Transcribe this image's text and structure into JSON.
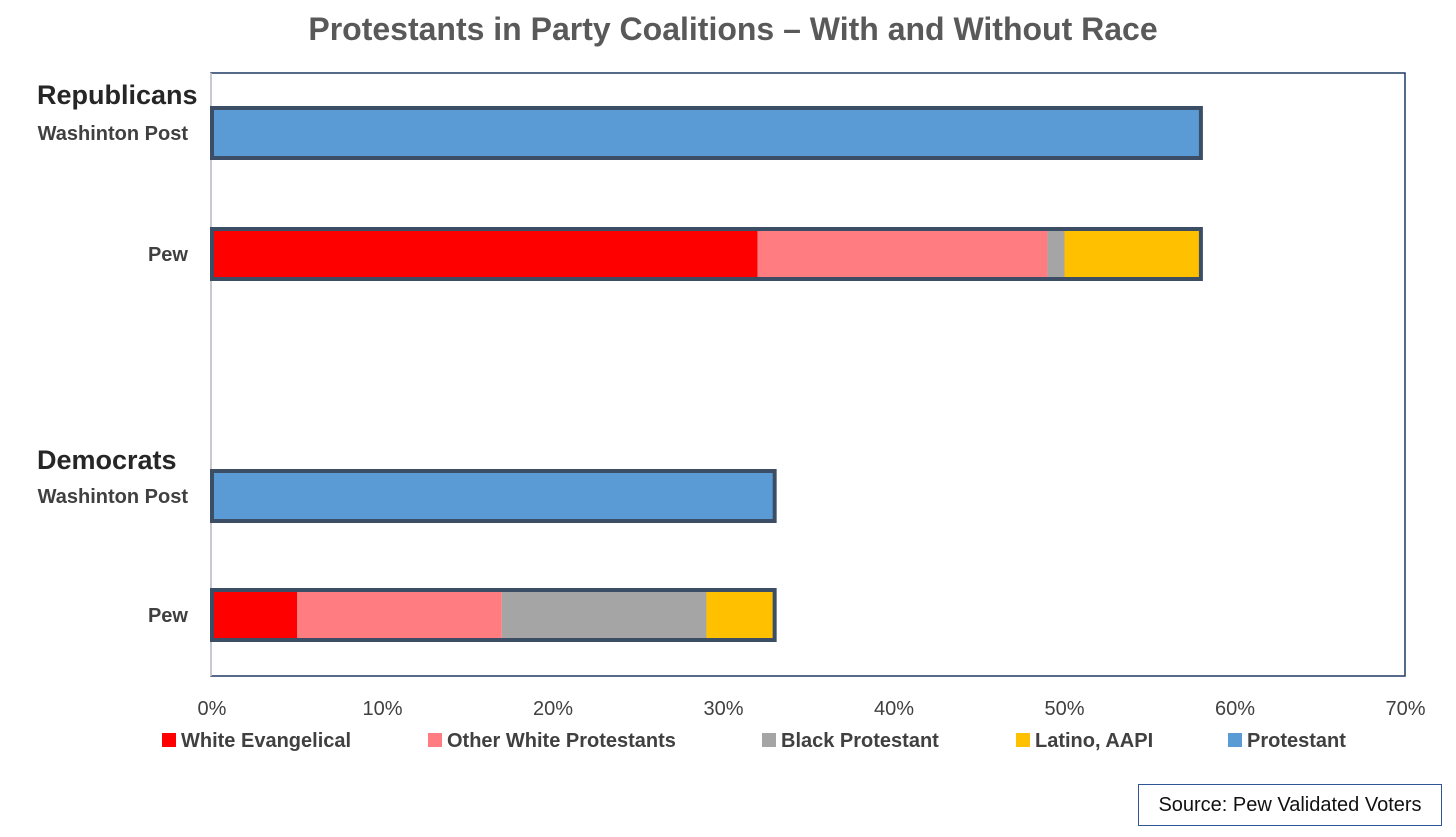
{
  "chart_data": {
    "type": "bar",
    "orientation": "horizontal",
    "stacked": true,
    "title": "Protestants in Party Coalitions – With and Without Race",
    "groups": [
      {
        "label": "Republicans",
        "rows": [
          {
            "label": "Washinton Post",
            "segments": [
              {
                "series": "Protestant",
                "value": 58
              }
            ]
          },
          {
            "label": "Pew",
            "segments": [
              {
                "series": "White Evangelical",
                "value": 32
              },
              {
                "series": "Other White Protestants",
                "value": 17
              },
              {
                "series": "Black Protestant",
                "value": 1
              },
              {
                "series": "Latino, AAPI",
                "value": 8
              }
            ]
          }
        ]
      },
      {
        "label": "Democrats",
        "rows": [
          {
            "label": "Washinton Post",
            "segments": [
              {
                "series": "Protestant",
                "value": 33
              }
            ]
          },
          {
            "label": "Pew",
            "segments": [
              {
                "series": "White Evangelical",
                "value": 5
              },
              {
                "series": "Other White Protestants",
                "value": 12
              },
              {
                "series": "Black Protestant",
                "value": 12
              },
              {
                "series": "Latino, AAPI",
                "value": 4
              }
            ]
          }
        ]
      }
    ],
    "series": [
      {
        "name": "White Evangelical",
        "color": "#ff0000"
      },
      {
        "name": "Other White Protestants",
        "color": "#ff7c80"
      },
      {
        "name": "Black Protestant",
        "color": "#a5a5a5"
      },
      {
        "name": "Latino, AAPI",
        "color": "#ffc000"
      },
      {
        "name": "Protestant",
        "color": "#5b9bd5"
      }
    ],
    "xlim": [
      0,
      70
    ],
    "xticks": [
      0,
      10,
      20,
      30,
      40,
      50,
      60,
      70
    ],
    "tick_suffix": "%",
    "legend_position": "bottom",
    "grid": false,
    "bar_outline_color": "#3b4e66",
    "plot_border_color": "#1f3864"
  },
  "source_note": "Source: Pew Validated Voters"
}
